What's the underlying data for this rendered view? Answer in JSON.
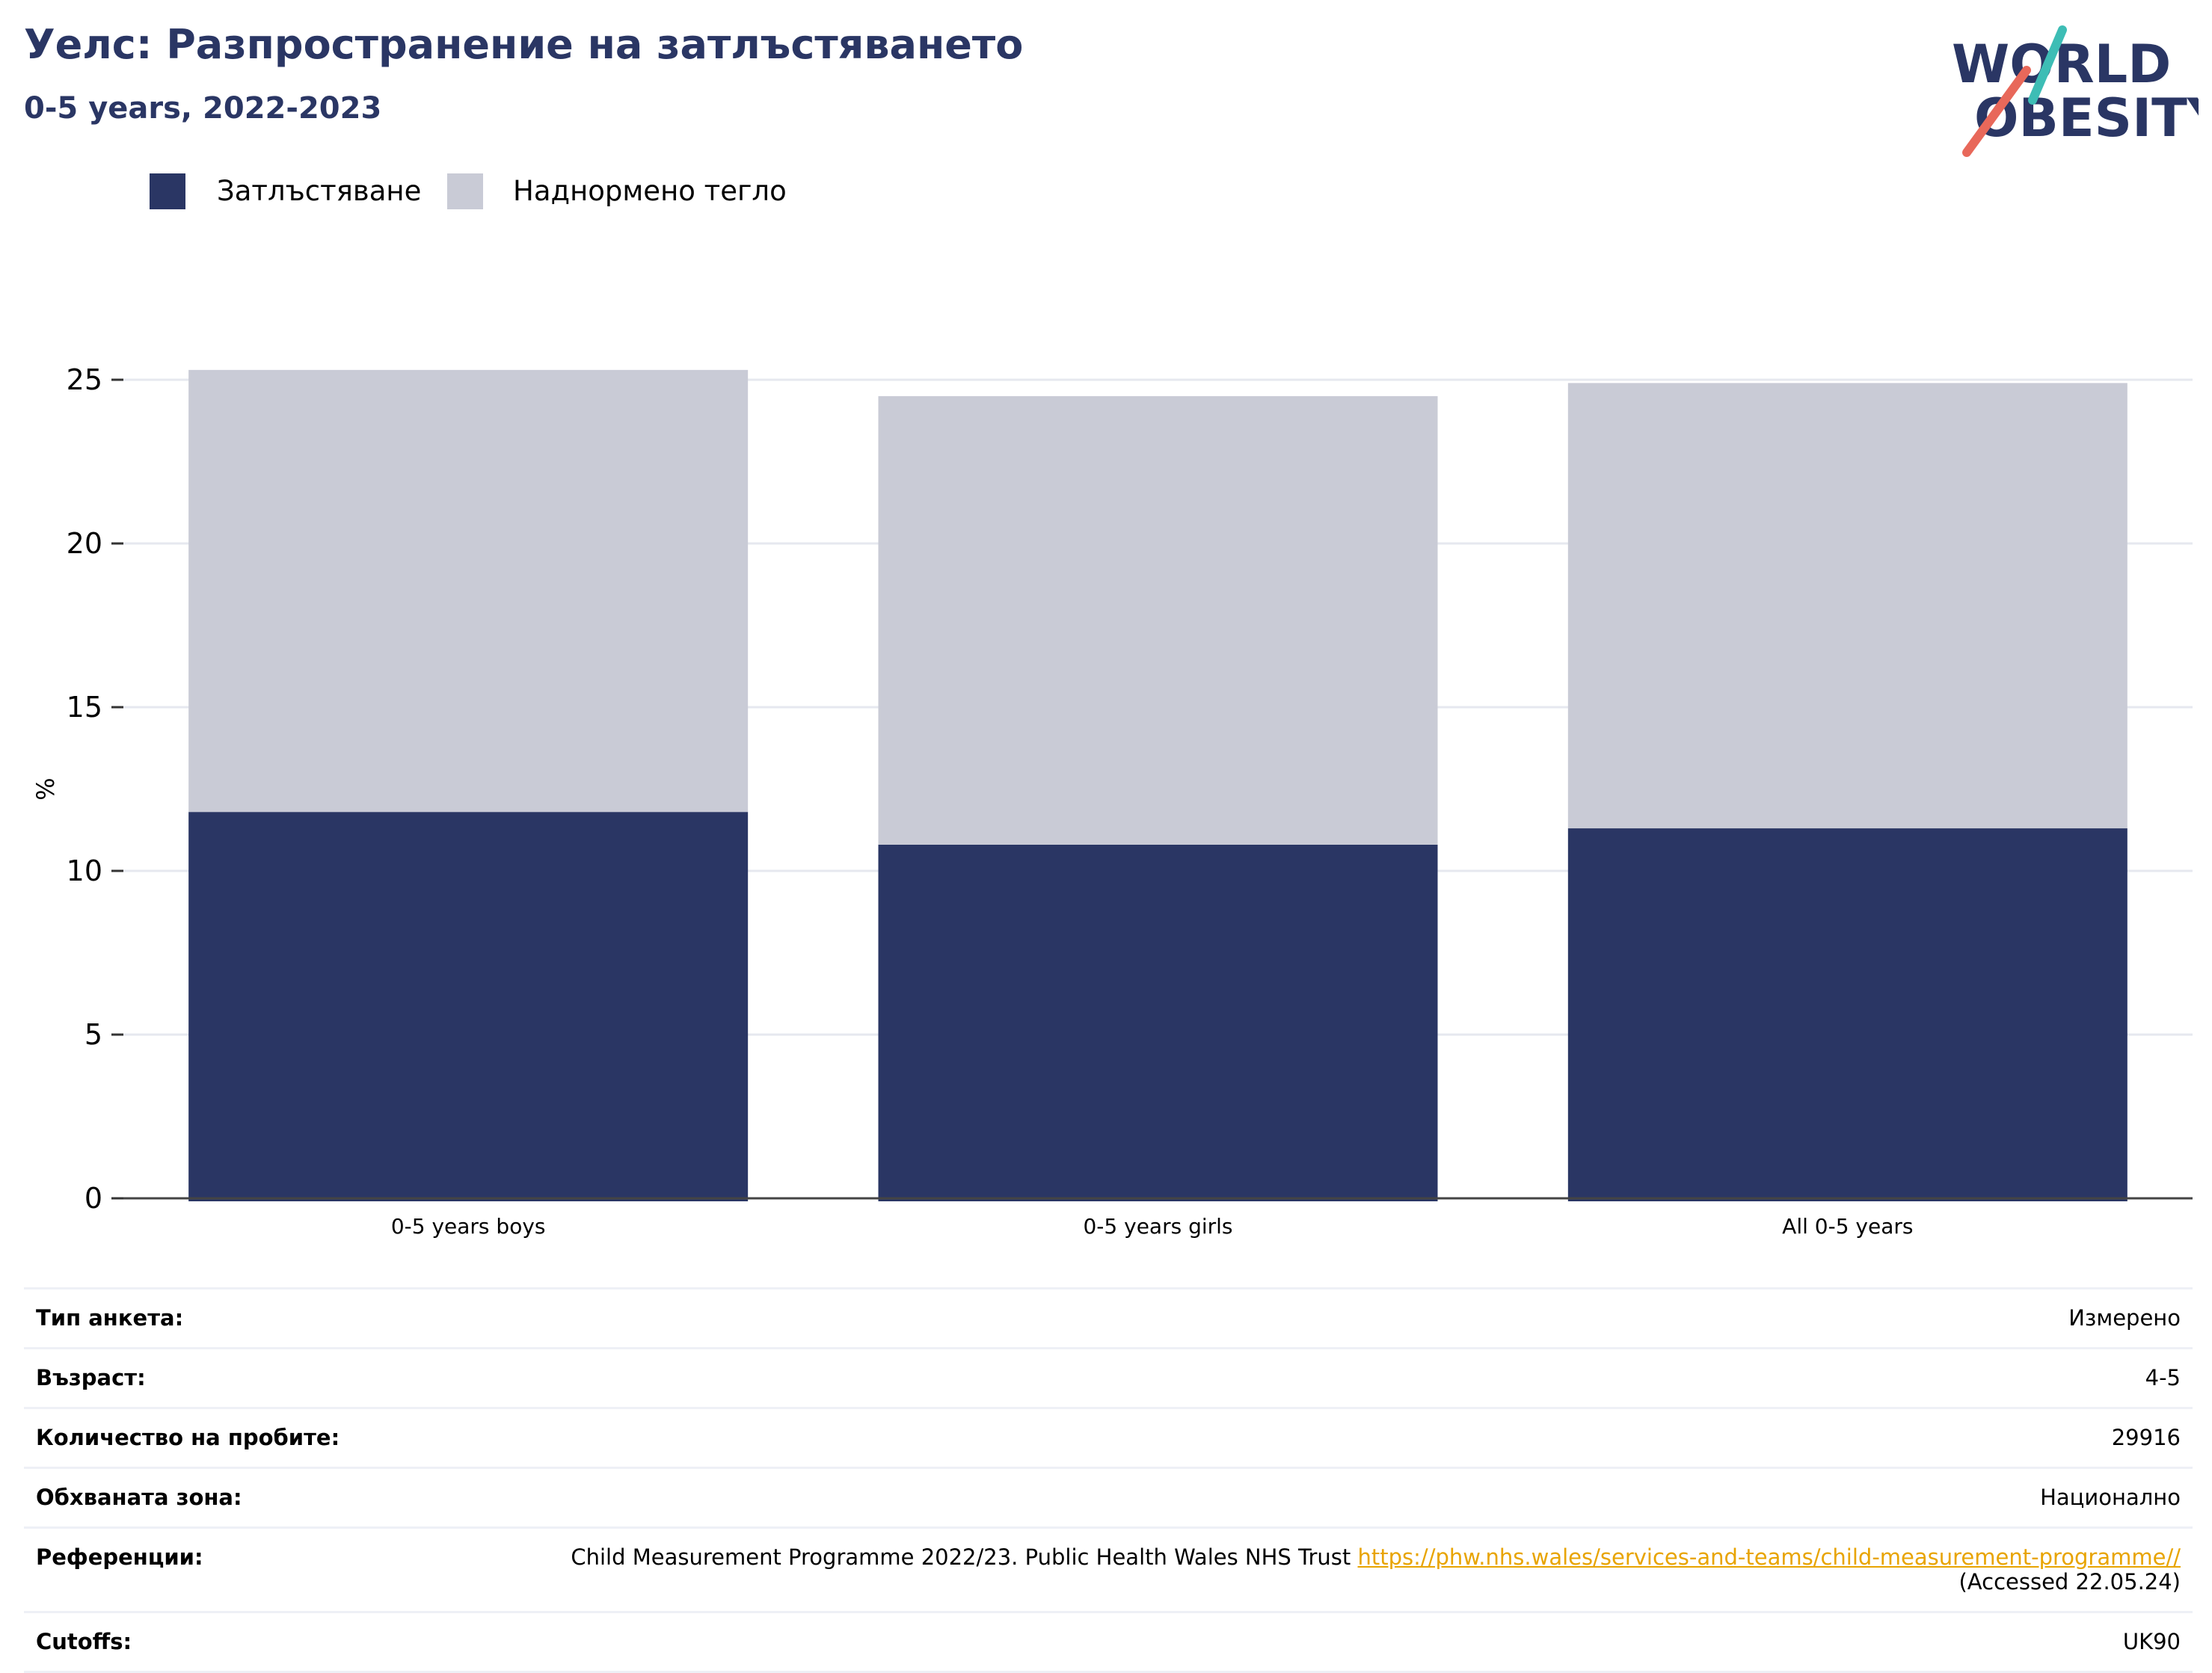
{
  "header": {
    "title": "Уелс: Разпространение на затлъстяването",
    "subtitle": "0-5 years, 2022-2023"
  },
  "logo": {
    "line1": "WORLD",
    "line2": "OBESITY",
    "colors": {
      "text": "#2a3664",
      "slash_top": "#3dbdb5",
      "slash_bottom": "#e8685a"
    }
  },
  "legend": {
    "items": [
      {
        "label": "Затлъстяване",
        "color": "#2a3664"
      },
      {
        "label": "Наднормено тегло",
        "color": "#c9cbd6"
      }
    ]
  },
  "chart_data": {
    "type": "bar",
    "stacked": true,
    "categories": [
      "0-5 years boys",
      "0-5 years girls",
      "All 0-5 years"
    ],
    "series": [
      {
        "name": "Затлъстяване",
        "values": [
          11.8,
          10.8,
          11.3
        ],
        "color": "#2a3664"
      },
      {
        "name": "Наднормено тегло",
        "values": [
          13.5,
          13.7,
          13.6
        ],
        "color": "#c9cbd6"
      }
    ],
    "ylabel": "%",
    "ylim": [
      0,
      25
    ],
    "yticks": [
      0,
      5,
      10,
      15,
      20,
      25
    ],
    "grid": true,
    "legend_position": "top-left"
  },
  "details": {
    "rows": [
      {
        "label": "Тип анкета:",
        "value": "Измерено"
      },
      {
        "label": "Възраст:",
        "value": "4-5"
      },
      {
        "label": "Количество на пробите:",
        "value": "29916"
      },
      {
        "label": "Обхваната зона:",
        "value": "Национално"
      }
    ],
    "references": {
      "label": "Референции:",
      "text": "Child Measurement Programme 2022/23. Public Health Wales NHS Trust",
      "link": "https://phw.nhs.wales/services-and-teams/child-measurement-programme//",
      "accessed": "(Accessed 22.05.24)"
    },
    "cutoffs": {
      "label": "Cutoffs:",
      "value": "UK90"
    }
  }
}
